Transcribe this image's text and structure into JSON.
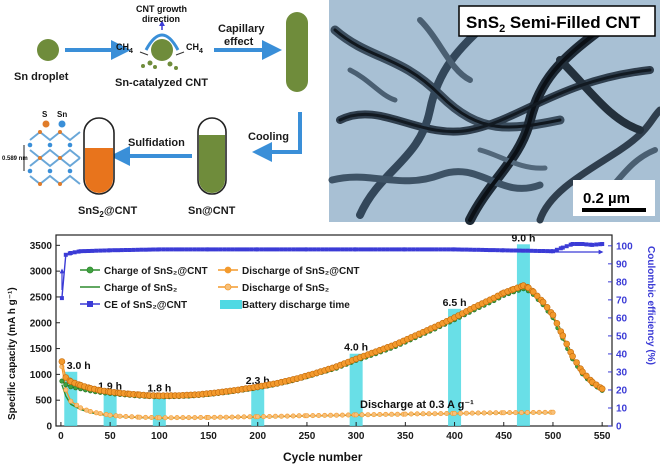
{
  "schematic": {
    "sn_droplet": "Sn droplet",
    "cnt_growth_line1": "CNT growth",
    "cnt_growth_line2": "direction",
    "ch4_left": "CH",
    "ch4_right": "CH",
    "ch4_sub": "4",
    "sn_catalyzed": "Sn-catalyzed CNT",
    "capillary_line1": "Capillary",
    "capillary_line2": "effect",
    "cooling": "Cooling",
    "sulfidation": "Sulfidation",
    "sn_at_cnt": "Sn@CNT",
    "sns2_at_cnt_main": "SnS",
    "sns2_at_cnt_sub": "2",
    "sns2_at_cnt_tail": "@CNT",
    "atom_s": "S",
    "atom_sn": "Sn",
    "spacing": "0.589 nm"
  },
  "tem": {
    "title_main": "SnS",
    "title_sub": "2",
    "title_tail": " Semi-Filled CNT",
    "scale": "0.2 µm"
  },
  "colors": {
    "green": "#2e8b2e",
    "orange": "#f39a2d",
    "blue": "#3b3bd6",
    "cyan": "#4fd9e3",
    "arrow": "#3a8fd8",
    "tube_green": "#6f8c3b",
    "tube_orange": "#e8741c"
  },
  "chart_data": {
    "type": "line",
    "xlabel": "Cycle number",
    "ylabel": "Specific capacity (mA h g⁻¹)",
    "ylabel_right": "Coulombic efficiency (%)",
    "xlim": [
      -5,
      560
    ],
    "ylim": [
      0,
      3700
    ],
    "ylim_right": [
      0,
      106
    ],
    "x_ticks": [
      0,
      50,
      100,
      150,
      200,
      250,
      300,
      350,
      400,
      450,
      500,
      550
    ],
    "y_ticks": [
      0,
      500,
      1000,
      1500,
      2000,
      2500,
      3000,
      3500
    ],
    "y_ticks_right": [
      0,
      10,
      20,
      30,
      40,
      50,
      60,
      70,
      80,
      90,
      100
    ],
    "legend": {
      "charge_sns2cnt": "Charge of SnS₂@CNT",
      "discharge_sns2cnt": "Discharge of SnS₂@CNT",
      "charge_sns2": "Charge of SnS₂",
      "discharge_sns2": "Discharge of SnS₂",
      "ce": "CE of SnS₂@CNT",
      "battery": "Battery discharge time"
    },
    "annotation": "Discharge at 0.3 A g⁻¹",
    "bars": {
      "name": "Battery discharge time",
      "x": [
        10,
        50,
        100,
        200,
        300,
        400,
        470
      ],
      "labels": [
        "3.0 h",
        "1.9 h",
        "1.8 h",
        "2.3 h",
        "4.0 h",
        "6.5 h",
        "9.0 h"
      ],
      "values": [
        1050,
        650,
        610,
        760,
        1400,
        2270,
        3520
      ]
    },
    "series": [
      {
        "name": "Discharge of SnS₂@CNT",
        "x": [
          1,
          5,
          10,
          20,
          30,
          40,
          50,
          60,
          70,
          80,
          90,
          100,
          120,
          140,
          160,
          180,
          200,
          220,
          240,
          260,
          280,
          300,
          320,
          340,
          360,
          380,
          400,
          420,
          440,
          450,
          460,
          470,
          475,
          480,
          490,
          500,
          510,
          520,
          530,
          540,
          550
        ],
        "values": [
          1250,
          940,
          860,
          790,
          730,
          690,
          660,
          640,
          620,
          605,
          590,
          585,
          590,
          610,
          650,
          700,
          760,
          830,
          920,
          1030,
          1150,
          1300,
          1440,
          1580,
          1750,
          1920,
          2100,
          2300,
          2480,
          2580,
          2650,
          2720,
          2680,
          2600,
          2400,
          2150,
          1750,
          1350,
          1050,
          850,
          720
        ]
      },
      {
        "name": "Charge of SnS₂@CNT",
        "x": [
          1,
          5,
          10,
          20,
          30,
          40,
          50,
          60,
          70,
          80,
          90,
          100,
          120,
          140,
          160,
          180,
          200,
          220,
          240,
          260,
          280,
          300,
          320,
          340,
          360,
          380,
          400,
          420,
          440,
          450,
          460,
          470,
          475,
          480,
          490,
          500,
          510,
          520,
          530,
          540,
          550
        ],
        "values": [
          870,
          800,
          760,
          720,
          680,
          650,
          630,
          610,
          595,
          580,
          570,
          565,
          570,
          590,
          630,
          680,
          740,
          810,
          900,
          1010,
          1120,
          1270,
          1400,
          1540,
          1710,
          1880,
          2060,
          2250,
          2430,
          2530,
          2600,
          2660,
          2620,
          2550,
          2350,
          2100,
          1700,
          1300,
          1010,
          820,
          690
        ]
      },
      {
        "name": "Discharge of SnS₂",
        "x": [
          1,
          5,
          10,
          20,
          30,
          40,
          50,
          60,
          80,
          100,
          150,
          200,
          250,
          300,
          350,
          400,
          450,
          500
        ],
        "values": [
          1150,
          700,
          480,
          350,
          280,
          240,
          210,
          190,
          170,
          160,
          165,
          180,
          200,
          215,
          230,
          245,
          258,
          265
        ]
      },
      {
        "name": "Charge of SnS₂",
        "x": [
          1,
          5,
          10,
          20,
          30,
          40,
          50,
          60,
          80,
          100,
          150,
          200,
          250,
          300,
          350,
          400,
          450,
          500
        ],
        "values": [
          800,
          580,
          420,
          320,
          260,
          225,
          200,
          182,
          165,
          155,
          160,
          175,
          195,
          210,
          225,
          240,
          252,
          258
        ]
      },
      {
        "name": "CE of SnS₂@CNT",
        "axis": "right",
        "x": [
          1,
          5,
          10,
          20,
          50,
          100,
          150,
          200,
          250,
          300,
          350,
          400,
          450,
          500,
          510,
          520,
          530,
          540,
          550
        ],
        "values": [
          71,
          95,
          96,
          97,
          97.5,
          98,
          98,
          98,
          98,
          98,
          98,
          98,
          97.5,
          97,
          99,
          101,
          101,
          100.5,
          101
        ]
      }
    ]
  }
}
